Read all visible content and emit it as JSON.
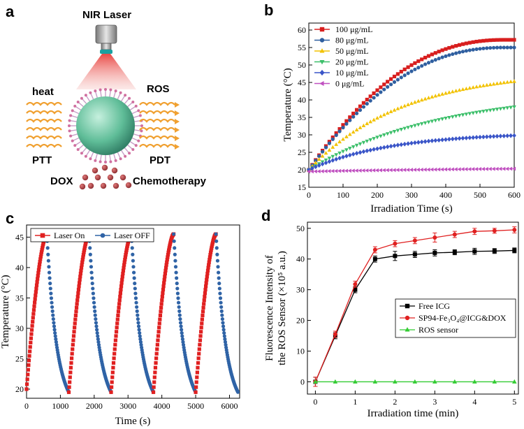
{
  "panels": {
    "a": "a",
    "b": "b",
    "c": "c",
    "d": "d"
  },
  "schematic": {
    "laser_label": "NIR Laser",
    "heat_label": "heat",
    "ros_label": "ROS",
    "ptt_label": "PTT",
    "pdt_label": "PDT",
    "dox_label": "DOX",
    "chemo_label": "Chemotherapy",
    "colors": {
      "laser_beam": "#e8403c",
      "particle": "#7fd1b0",
      "heat_wave": "#f0a030",
      "drug": "#a0383c"
    }
  },
  "chart_data": [
    {
      "id": "b",
      "type": "line",
      "xlabel": "Irradiation Time (s)",
      "ylabel": "Temperature (°C)",
      "xlim": [
        0,
        600
      ],
      "ylim": [
        15,
        62
      ],
      "xticks": [
        0,
        100,
        200,
        300,
        400,
        500,
        600
      ],
      "yticks": [
        15,
        20,
        25,
        30,
        35,
        40,
        45,
        50,
        55,
        60
      ],
      "legend_position": "top-left",
      "series": [
        {
          "name": "100 μg/mL",
          "color": "#d81e1e",
          "marker": "square",
          "start": 20,
          "end": 57.2
        },
        {
          "name": "80 μg/mL",
          "color": "#2f5fa0",
          "marker": "circle",
          "start": 20,
          "end": 55
        },
        {
          "name": "50 μg/mL",
          "color": "#f2c200",
          "marker": "triangle-up",
          "start": 20,
          "end": 45.3
        },
        {
          "name": "20 μg/mL",
          "color": "#3cbf6a",
          "marker": "triangle-down",
          "start": 20,
          "end": 38
        },
        {
          "name": "10 μg/mL",
          "color": "#3a55c8",
          "marker": "diamond",
          "start": 20,
          "end": 29.8
        },
        {
          "name": "0 μg/mL",
          "color": "#c050c0",
          "marker": "triangle-left",
          "start": 19.5,
          "end": 20.3
        }
      ]
    },
    {
      "id": "c",
      "type": "line",
      "xlabel": "Time (s)",
      "ylabel": "Temperature (°C)",
      "xlim": [
        0,
        6300
      ],
      "ylim": [
        18.5,
        47
      ],
      "xticks": [
        0,
        1000,
        2000,
        3000,
        4000,
        5000,
        6000
      ],
      "yticks": [
        20,
        25,
        30,
        35,
        40,
        45
      ],
      "legend_position": "top",
      "cycles": 5,
      "cycle_period_s": 1250,
      "heating_duration_s": 600,
      "min_temperature": 19.5,
      "max_temperature": 45.5,
      "series": [
        {
          "name": "Laser On",
          "color": "#e02020",
          "marker": "square"
        },
        {
          "name": "Laser OFF",
          "color": "#2f63a6",
          "marker": "circle"
        }
      ]
    },
    {
      "id": "d",
      "type": "line",
      "xlabel": "Irradiation time (min)",
      "ylabel_line1": "Fluorescence Intensity of",
      "ylabel_line2": "the ROS Sensor (×10⁵ a.u.)",
      "xlim": [
        -0.2,
        5.1
      ],
      "ylim": [
        -4,
        52
      ],
      "xticks": [
        0,
        1,
        2,
        3,
        4,
        5
      ],
      "yticks": [
        0,
        10,
        20,
        30,
        40,
        50
      ],
      "legend_position": "center-right",
      "x": [
        0,
        0.5,
        1,
        1.5,
        2,
        2.5,
        3,
        3.5,
        4,
        4.5,
        5
      ],
      "series": [
        {
          "name": "Free ICG",
          "color": "#000000",
          "marker": "square",
          "values": [
            0,
            15,
            30,
            40,
            41,
            41.5,
            42,
            42.2,
            42.5,
            42.6,
            42.8
          ],
          "errors": [
            1.5,
            1,
            1,
            1,
            1.5,
            1,
            1,
            0.8,
            1,
            0.8,
            0.8
          ]
        },
        {
          "name": "SP94-Fe₃O₄@ICG&DOX",
          "color": "#e02020",
          "marker": "circle",
          "values": [
            0,
            15.5,
            31.8,
            43,
            45,
            46,
            47,
            48,
            49,
            49.2,
            49.5
          ],
          "errors": [
            1.5,
            1,
            1,
            1,
            1,
            1,
            1.5,
            1,
            1,
            0.8,
            1
          ]
        },
        {
          "name": "ROS sensor",
          "color": "#33cc33",
          "marker": "triangle-up",
          "values": [
            0,
            0,
            0,
            0,
            0,
            0,
            0,
            0,
            0,
            0,
            0
          ],
          "errors": [
            0,
            0,
            0,
            0,
            0,
            0,
            0,
            0,
            0,
            0,
            0
          ]
        }
      ]
    }
  ]
}
